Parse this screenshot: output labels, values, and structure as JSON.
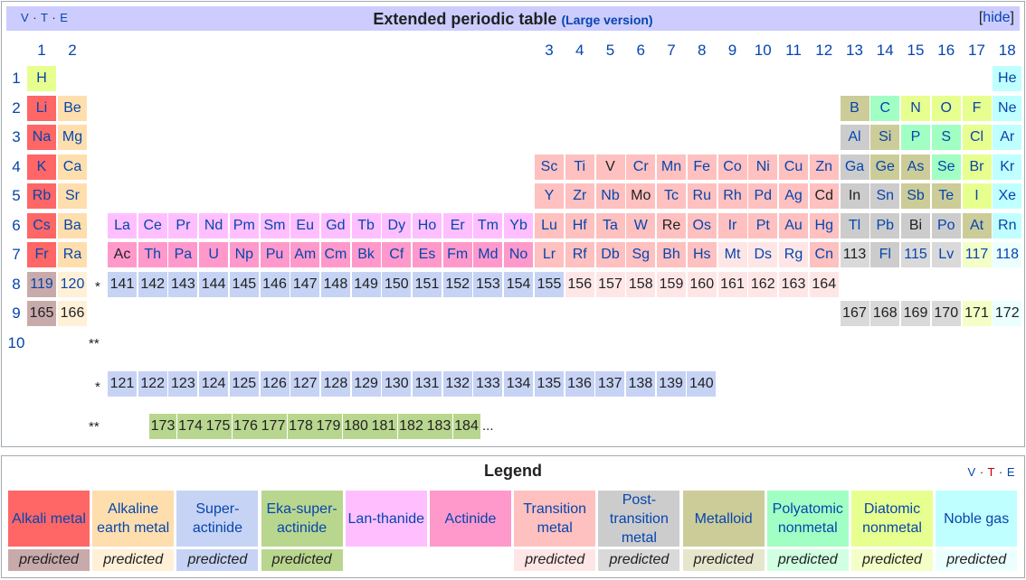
{
  "header": {
    "vte": [
      "V",
      "T",
      "E"
    ],
    "title": "Extended periodic table",
    "subtitle": "(Large version)",
    "hide_left": "[",
    "hide_label": "hide",
    "hide_right": "]"
  },
  "groups": [
    "1",
    "2",
    "3",
    "4",
    "5",
    "6",
    "7",
    "8",
    "9",
    "10",
    "11",
    "12",
    "13",
    "14",
    "15",
    "16",
    "17",
    "18"
  ],
  "periods": [
    "1",
    "2",
    "3",
    "4",
    "5",
    "6",
    "7",
    "8",
    "9",
    "10"
  ],
  "colors": {
    "alkali": "#ff6666",
    "alkaline": "#ffdead",
    "lanthanide": "#ffbfff",
    "actinide": "#ff99cc",
    "transition": "#ffc0c0",
    "post_transition": "#cccccc",
    "metalloid": "#cccc99",
    "polyatomic": "#a1ffc3",
    "diatomic": "#e7ff8f",
    "noble": "#c0ffff",
    "superactinide": "#c6d3f4",
    "eka": "#b9d68f",
    "pred_alkali": "#c9aaaa",
    "pred_alkaline": "#fff0d7",
    "pred_transition": "#ffe6e6",
    "pred_post": "#d9d9d9",
    "pred_diatomic": "#f3ffc6",
    "pred_noble": "#ebffff",
    "pred_metalloid": "#e6e6cc",
    "pred_polyatomic": "#d0ffe1"
  },
  "elements": [
    {
      "s": "H",
      "c": "diatomic",
      "g": 1,
      "p": 1
    },
    {
      "s": "He",
      "c": "noble",
      "g": 18,
      "p": 1
    },
    {
      "s": "Li",
      "c": "alkali",
      "g": 1,
      "p": 2
    },
    {
      "s": "Be",
      "c": "alkaline",
      "g": 2,
      "p": 2
    },
    {
      "s": "B",
      "c": "metalloid",
      "g": 13,
      "p": 2
    },
    {
      "s": "C",
      "c": "polyatomic",
      "g": 14,
      "p": 2
    },
    {
      "s": "N",
      "c": "diatomic",
      "g": 15,
      "p": 2
    },
    {
      "s": "O",
      "c": "diatomic",
      "g": 16,
      "p": 2
    },
    {
      "s": "F",
      "c": "diatomic",
      "g": 17,
      "p": 2
    },
    {
      "s": "Ne",
      "c": "noble",
      "g": 18,
      "p": 2
    },
    {
      "s": "Na",
      "c": "alkali",
      "g": 1,
      "p": 3
    },
    {
      "s": "Mg",
      "c": "alkaline",
      "g": 2,
      "p": 3
    },
    {
      "s": "Al",
      "c": "post_transition",
      "g": 13,
      "p": 3
    },
    {
      "s": "Si",
      "c": "metalloid",
      "g": 14,
      "p": 3
    },
    {
      "s": "P",
      "c": "polyatomic",
      "g": 15,
      "p": 3
    },
    {
      "s": "S",
      "c": "polyatomic",
      "g": 16,
      "p": 3
    },
    {
      "s": "Cl",
      "c": "diatomic",
      "g": 17,
      "p": 3
    },
    {
      "s": "Ar",
      "c": "noble",
      "g": 18,
      "p": 3
    },
    {
      "s": "K",
      "c": "alkali",
      "g": 1,
      "p": 4
    },
    {
      "s": "Ca",
      "c": "alkaline",
      "g": 2,
      "p": 4
    },
    {
      "s": "Sc",
      "c": "transition",
      "g": 3,
      "p": 4
    },
    {
      "s": "Ti",
      "c": "transition",
      "g": 4,
      "p": 4
    },
    {
      "s": "V",
      "c": "transition",
      "g": 5,
      "p": 4
    },
    {
      "s": "Cr",
      "c": "transition",
      "g": 6,
      "p": 4
    },
    {
      "s": "Mn",
      "c": "transition",
      "g": 7,
      "p": 4
    },
    {
      "s": "Fe",
      "c": "transition",
      "g": 8,
      "p": 4
    },
    {
      "s": "Co",
      "c": "transition",
      "g": 9,
      "p": 4
    },
    {
      "s": "Ni",
      "c": "transition",
      "g": 10,
      "p": 4
    },
    {
      "s": "Cu",
      "c": "transition",
      "g": 11,
      "p": 4
    },
    {
      "s": "Zn",
      "c": "transition",
      "g": 12,
      "p": 4
    },
    {
      "s": "Ga",
      "c": "post_transition",
      "g": 13,
      "p": 4
    },
    {
      "s": "Ge",
      "c": "metalloid",
      "g": 14,
      "p": 4
    },
    {
      "s": "As",
      "c": "metalloid",
      "g": 15,
      "p": 4
    },
    {
      "s": "Se",
      "c": "polyatomic",
      "g": 16,
      "p": 4
    },
    {
      "s": "Br",
      "c": "diatomic",
      "g": 17,
      "p": 4
    },
    {
      "s": "Kr",
      "c": "noble",
      "g": 18,
      "p": 4
    },
    {
      "s": "Rb",
      "c": "alkali",
      "g": 1,
      "p": 5
    },
    {
      "s": "Sr",
      "c": "alkaline",
      "g": 2,
      "p": 5
    },
    {
      "s": "Y",
      "c": "transition",
      "g": 3,
      "p": 5
    },
    {
      "s": "Zr",
      "c": "transition",
      "g": 4,
      "p": 5
    },
    {
      "s": "Nb",
      "c": "transition",
      "g": 5,
      "p": 5
    },
    {
      "s": "Mo",
      "c": "transition",
      "g": 6,
      "p": 5
    },
    {
      "s": "Tc",
      "c": "transition",
      "g": 7,
      "p": 5
    },
    {
      "s": "Ru",
      "c": "transition",
      "g": 8,
      "p": 5
    },
    {
      "s": "Rh",
      "c": "transition",
      "g": 9,
      "p": 5
    },
    {
      "s": "Pd",
      "c": "transition",
      "g": 10,
      "p": 5
    },
    {
      "s": "Ag",
      "c": "transition",
      "g": 11,
      "p": 5
    },
    {
      "s": "Cd",
      "c": "transition",
      "g": 12,
      "p": 5
    },
    {
      "s": "In",
      "c": "post_transition",
      "g": 13,
      "p": 5
    },
    {
      "s": "Sn",
      "c": "post_transition",
      "g": 14,
      "p": 5
    },
    {
      "s": "Sb",
      "c": "metalloid",
      "g": 15,
      "p": 5
    },
    {
      "s": "Te",
      "c": "metalloid",
      "g": 16,
      "p": 5
    },
    {
      "s": "I",
      "c": "diatomic",
      "g": 17,
      "p": 5
    },
    {
      "s": "Xe",
      "c": "noble",
      "g": 18,
      "p": 5
    },
    {
      "s": "Cs",
      "c": "alkali",
      "g": 1,
      "p": 6
    },
    {
      "s": "Ba",
      "c": "alkaline",
      "g": 2,
      "p": 6
    },
    {
      "s": "La",
      "c": "lanthanide",
      "f": 0,
      "p": 6
    },
    {
      "s": "Ce",
      "c": "lanthanide",
      "f": 1,
      "p": 6
    },
    {
      "s": "Pr",
      "c": "lanthanide",
      "f": 2,
      "p": 6
    },
    {
      "s": "Nd",
      "c": "lanthanide",
      "f": 3,
      "p": 6
    },
    {
      "s": "Pm",
      "c": "lanthanide",
      "f": 4,
      "p": 6
    },
    {
      "s": "Sm",
      "c": "lanthanide",
      "f": 5,
      "p": 6
    },
    {
      "s": "Eu",
      "c": "lanthanide",
      "f": 6,
      "p": 6
    },
    {
      "s": "Gd",
      "c": "lanthanide",
      "f": 7,
      "p": 6
    },
    {
      "s": "Tb",
      "c": "lanthanide",
      "f": 8,
      "p": 6
    },
    {
      "s": "Dy",
      "c": "lanthanide",
      "f": 9,
      "p": 6
    },
    {
      "s": "Ho",
      "c": "lanthanide",
      "f": 10,
      "p": 6
    },
    {
      "s": "Er",
      "c": "lanthanide",
      "f": 11,
      "p": 6
    },
    {
      "s": "Tm",
      "c": "lanthanide",
      "f": 12,
      "p": 6
    },
    {
      "s": "Yb",
      "c": "lanthanide",
      "f": 13,
      "p": 6
    },
    {
      "s": "Lu",
      "c": "transition",
      "g": 3,
      "p": 6
    },
    {
      "s": "Hf",
      "c": "transition",
      "g": 4,
      "p": 6
    },
    {
      "s": "Ta",
      "c": "transition",
      "g": 5,
      "p": 6
    },
    {
      "s": "W",
      "c": "transition",
      "g": 6,
      "p": 6
    },
    {
      "s": "Re",
      "c": "transition",
      "g": 7,
      "p": 6
    },
    {
      "s": "Os",
      "c": "transition",
      "g": 8,
      "p": 6
    },
    {
      "s": "Ir",
      "c": "transition",
      "g": 9,
      "p": 6
    },
    {
      "s": "Pt",
      "c": "transition",
      "g": 10,
      "p": 6
    },
    {
      "s": "Au",
      "c": "transition",
      "g": 11,
      "p": 6
    },
    {
      "s": "Hg",
      "c": "transition",
      "g": 12,
      "p": 6
    },
    {
      "s": "Tl",
      "c": "post_transition",
      "g": 13,
      "p": 6
    },
    {
      "s": "Pb",
      "c": "post_transition",
      "g": 14,
      "p": 6
    },
    {
      "s": "Bi",
      "c": "post_transition",
      "g": 15,
      "p": 6
    },
    {
      "s": "Po",
      "c": "post_transition",
      "g": 16,
      "p": 6
    },
    {
      "s": "At",
      "c": "metalloid",
      "g": 17,
      "p": 6
    },
    {
      "s": "Rn",
      "c": "noble",
      "g": 18,
      "p": 6
    },
    {
      "s": "Fr",
      "c": "alkali",
      "g": 1,
      "p": 7
    },
    {
      "s": "Ra",
      "c": "alkaline",
      "g": 2,
      "p": 7
    },
    {
      "s": "Ac",
      "c": "actinide",
      "f": 0,
      "p": 7
    },
    {
      "s": "Th",
      "c": "actinide",
      "f": 1,
      "p": 7
    },
    {
      "s": "Pa",
      "c": "actinide",
      "f": 2,
      "p": 7
    },
    {
      "s": "U",
      "c": "actinide",
      "f": 3,
      "p": 7
    },
    {
      "s": "Np",
      "c": "actinide",
      "f": 4,
      "p": 7
    },
    {
      "s": "Pu",
      "c": "actinide",
      "f": 5,
      "p": 7
    },
    {
      "s": "Am",
      "c": "actinide",
      "f": 6,
      "p": 7
    },
    {
      "s": "Cm",
      "c": "actinide",
      "f": 7,
      "p": 7
    },
    {
      "s": "Bk",
      "c": "actinide",
      "f": 8,
      "p": 7
    },
    {
      "s": "Cf",
      "c": "actinide",
      "f": 9,
      "p": 7
    },
    {
      "s": "Es",
      "c": "actinide",
      "f": 10,
      "p": 7
    },
    {
      "s": "Fm",
      "c": "actinide",
      "f": 11,
      "p": 7
    },
    {
      "s": "Md",
      "c": "actinide",
      "f": 12,
      "p": 7
    },
    {
      "s": "No",
      "c": "actinide",
      "f": 13,
      "p": 7
    },
    {
      "s": "Lr",
      "c": "transition",
      "g": 3,
      "p": 7
    },
    {
      "s": "Rf",
      "c": "transition",
      "g": 4,
      "p": 7
    },
    {
      "s": "Db",
      "c": "transition",
      "g": 5,
      "p": 7
    },
    {
      "s": "Sg",
      "c": "transition",
      "g": 6,
      "p": 7
    },
    {
      "s": "Bh",
      "c": "transition",
      "g": 7,
      "p": 7
    },
    {
      "s": "Hs",
      "c": "transition",
      "g": 8,
      "p": 7
    },
    {
      "s": "Mt",
      "c": "pred_transition",
      "g": 9,
      "p": 7
    },
    {
      "s": "Ds",
      "c": "pred_transition",
      "g": 10,
      "p": 7
    },
    {
      "s": "Rg",
      "c": "pred_transition",
      "g": 11,
      "p": 7
    },
    {
      "s": "Cn",
      "c": "transition",
      "g": 12,
      "p": 7
    },
    {
      "s": "113",
      "c": "pred_post",
      "g": 13,
      "p": 7
    },
    {
      "s": "Fl",
      "c": "post_transition",
      "g": 14,
      "p": 7
    },
    {
      "s": "115",
      "c": "pred_post",
      "g": 15,
      "p": 7
    },
    {
      "s": "Lv",
      "c": "pred_post",
      "g": 16,
      "p": 7
    },
    {
      "s": "117",
      "c": "pred_diatomic",
      "g": 17,
      "p": 7
    },
    {
      "s": "118",
      "c": "pred_noble",
      "g": 18,
      "p": 7
    },
    {
      "s": "119",
      "c": "pred_alkali",
      "g": 1,
      "p": 8
    },
    {
      "s": "120",
      "c": "pred_alkaline",
      "g": 2,
      "p": 8
    },
    {
      "s": "141",
      "c": "superactinide",
      "f": 0,
      "p": 8
    },
    {
      "s": "142",
      "c": "superactinide",
      "f": 1,
      "p": 8
    },
    {
      "s": "143",
      "c": "superactinide",
      "f": 2,
      "p": 8
    },
    {
      "s": "144",
      "c": "superactinide",
      "f": 3,
      "p": 8
    },
    {
      "s": "145",
      "c": "superactinide",
      "f": 4,
      "p": 8
    },
    {
      "s": "146",
      "c": "superactinide",
      "f": 5,
      "p": 8
    },
    {
      "s": "147",
      "c": "superactinide",
      "f": 6,
      "p": 8
    },
    {
      "s": "148",
      "c": "superactinide",
      "f": 7,
      "p": 8
    },
    {
      "s": "149",
      "c": "superactinide",
      "f": 8,
      "p": 8
    },
    {
      "s": "150",
      "c": "superactinide",
      "f": 9,
      "p": 8
    },
    {
      "s": "151",
      "c": "superactinide",
      "f": 10,
      "p": 8
    },
    {
      "s": "152",
      "c": "superactinide",
      "f": 11,
      "p": 8
    },
    {
      "s": "153",
      "c": "superactinide",
      "f": 12,
      "p": 8
    },
    {
      "s": "154",
      "c": "superactinide",
      "f": 13,
      "p": 8
    },
    {
      "s": "155",
      "c": "superactinide",
      "g": 3,
      "p": 8
    },
    {
      "s": "156",
      "c": "pred_transition",
      "g": 4,
      "p": 8
    },
    {
      "s": "157",
      "c": "pred_transition",
      "g": 5,
      "p": 8
    },
    {
      "s": "158",
      "c": "pred_transition",
      "g": 6,
      "p": 8
    },
    {
      "s": "159",
      "c": "pred_transition",
      "g": 7,
      "p": 8
    },
    {
      "s": "160",
      "c": "pred_transition",
      "g": 8,
      "p": 8
    },
    {
      "s": "161",
      "c": "pred_transition",
      "g": 9,
      "p": 8
    },
    {
      "s": "162",
      "c": "pred_transition",
      "g": 10,
      "p": 8
    },
    {
      "s": "163",
      "c": "pred_transition",
      "g": 11,
      "p": 8
    },
    {
      "s": "164",
      "c": "pred_transition",
      "g": 12,
      "p": 8
    },
    {
      "s": "165",
      "c": "pred_alkali",
      "g": 1,
      "p": 9
    },
    {
      "s": "166",
      "c": "pred_alkaline",
      "g": 2,
      "p": 9
    },
    {
      "s": "167",
      "c": "pred_post",
      "g": 13,
      "p": 9
    },
    {
      "s": "168",
      "c": "pred_post",
      "g": 14,
      "p": 9
    },
    {
      "s": "169",
      "c": "pred_post",
      "g": 15,
      "p": 9
    },
    {
      "s": "170",
      "c": "pred_post",
      "g": 16,
      "p": 9
    },
    {
      "s": "171",
      "c": "pred_diatomic",
      "g": 17,
      "p": 9
    },
    {
      "s": "172",
      "c": "pred_noble",
      "g": 18,
      "p": 9
    }
  ],
  "star_labels": {
    "row8": "*",
    "row10": "**",
    "super_row": "*",
    "eka_row": "**"
  },
  "superactinide_row": [
    "121",
    "122",
    "123",
    "124",
    "125",
    "126",
    "127",
    "128",
    "129",
    "130",
    "131",
    "132",
    "133",
    "134",
    "135",
    "136",
    "137",
    "138",
    "139",
    "140"
  ],
  "eka_row": [
    "173",
    "174",
    "175",
    "176",
    "177",
    "178",
    "179",
    "180",
    "181",
    "182",
    "183",
    "184"
  ],
  "eka_ellipsis": "...",
  "legend": {
    "title": "Legend",
    "vte": [
      "V",
      "T",
      "E"
    ],
    "items": [
      {
        "label": "Alkali metal",
        "color": "alkali",
        "pred_color": "pred_alkali",
        "pred": "predicted"
      },
      {
        "label": "Alkaline earth metal",
        "color": "alkaline",
        "pred_color": "pred_alkaline",
        "pred": "predicted"
      },
      {
        "label": "Super-actinide",
        "color": "superactinide",
        "pred_color": "superactinide",
        "pred": "predicted"
      },
      {
        "label": "Eka-super-actinide",
        "color": "eka",
        "pred_color": "eka",
        "pred": "predicted"
      },
      {
        "label": "Lan-thanide",
        "color": "lanthanide",
        "pred_color": "",
        "pred": ""
      },
      {
        "label": "Actinide",
        "color": "actinide",
        "pred_color": "",
        "pred": ""
      },
      {
        "label": "Transition metal",
        "color": "transition",
        "pred_color": "pred_transition",
        "pred": "predicted"
      },
      {
        "label": "Post-transition metal",
        "color": "post_transition",
        "pred_color": "pred_post",
        "pred": "predicted"
      },
      {
        "label": "Metalloid",
        "color": "metalloid",
        "pred_color": "pred_metalloid",
        "pred": "predicted"
      },
      {
        "label": "Polyatomic nonmetal",
        "color": "polyatomic",
        "pred_color": "pred_polyatomic",
        "pred": "predicted"
      },
      {
        "label": "Diatomic nonmetal",
        "color": "diatomic",
        "pred_color": "pred_diatomic",
        "pred": "predicted"
      },
      {
        "label": "Noble gas",
        "color": "noble",
        "pred_color": "pred_noble",
        "pred": "predicted"
      }
    ]
  }
}
